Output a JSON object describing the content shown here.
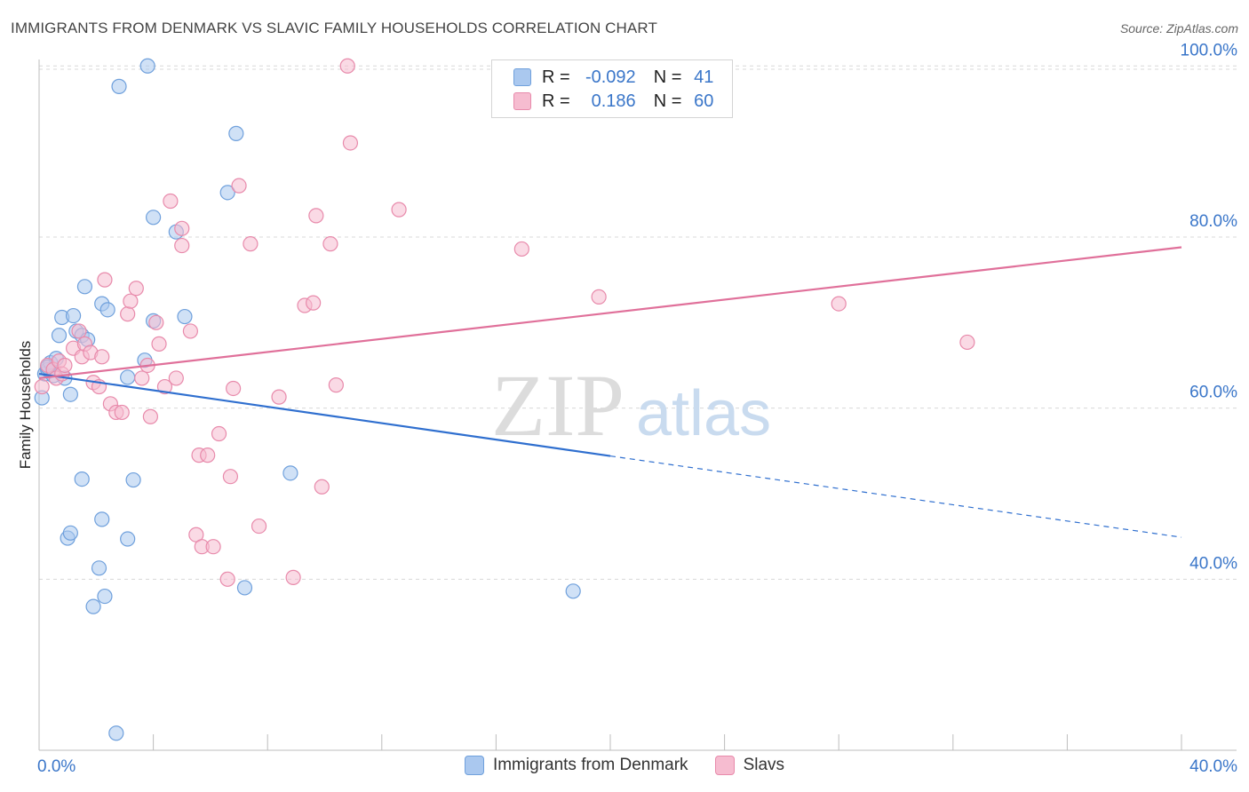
{
  "header": {
    "title": "IMMIGRANTS FROM DENMARK VS SLAVIC FAMILY HOUSEHOLDS CORRELATION CHART",
    "source": "Source: ZipAtlas.com"
  },
  "legend_top": {
    "rows": [
      {
        "r_label": "R =",
        "r_value": "-0.092",
        "n_label": "N =",
        "n_value": "41"
      },
      {
        "r_label": "R =",
        "r_value": "0.186",
        "n_label": "N =",
        "n_value": "60"
      }
    ]
  },
  "legend_bottom": {
    "items": [
      "Immigrants from Denmark",
      "Slavs"
    ]
  },
  "watermark": {
    "zip": "ZIP",
    "atlas": "atlas"
  },
  "colors": {
    "denmark_fill": "#aac8ef",
    "denmark_stroke": "#6fa0dc",
    "denmark_line": "#2f6fcf",
    "slavs_fill": "#f6bcd0",
    "slavs_stroke": "#e88aab",
    "slavs_line": "#e0709a",
    "grid": "#d8d8d8",
    "tick_label": "#3a76c9"
  },
  "chart_data": {
    "type": "scatter",
    "title": "IMMIGRANTS FROM DENMARK VS SLAVIC FAMILY HOUSEHOLDS CORRELATION CHART",
    "ylabel": "Family Households",
    "xlabel": "",
    "xlim": [
      0,
      40
    ],
    "ylim": [
      20,
      102
    ],
    "x_tick_labels": [
      {
        "value": 0,
        "label": "0.0%"
      },
      {
        "value": 40,
        "label": "40.0%"
      }
    ],
    "y_tick_labels": [
      {
        "value": 100,
        "label": "100.0%"
      },
      {
        "value": 80,
        "label": "80.0%"
      },
      {
        "value": 60,
        "label": "60.0%"
      },
      {
        "value": 40,
        "label": "40.0%"
      }
    ],
    "grid": true,
    "legend_position": "top-center",
    "series": [
      {
        "name": "Immigrants from Denmark",
        "points": [
          [
            0.1,
            61.2
          ],
          [
            0.2,
            64.0
          ],
          [
            0.3,
            64.5
          ],
          [
            0.4,
            65.3
          ],
          [
            0.5,
            63.8
          ],
          [
            0.6,
            65.8
          ],
          [
            0.7,
            68.5
          ],
          [
            0.8,
            70.6
          ],
          [
            0.9,
            63.5
          ],
          [
            1.1,
            61.6
          ],
          [
            1.2,
            70.8
          ],
          [
            1.3,
            69.0
          ],
          [
            1.5,
            68.5
          ],
          [
            1.6,
            74.2
          ],
          [
            1.7,
            68.0
          ],
          [
            2.2,
            72.2
          ],
          [
            2.4,
            71.5
          ],
          [
            2.8,
            97.6
          ],
          [
            3.8,
            100.0
          ],
          [
            4.0,
            82.3
          ],
          [
            3.7,
            65.6
          ],
          [
            3.1,
            63.6
          ],
          [
            4.0,
            70.2
          ],
          [
            4.8,
            80.6
          ],
          [
            5.1,
            70.7
          ],
          [
            6.6,
            85.2
          ],
          [
            6.9,
            92.1
          ],
          [
            8.8,
            52.4
          ],
          [
            1.5,
            51.7
          ],
          [
            3.3,
            51.6
          ],
          [
            2.2,
            47.0
          ],
          [
            1.0,
            44.8
          ],
          [
            1.1,
            45.4
          ],
          [
            3.1,
            44.7
          ],
          [
            2.1,
            41.3
          ],
          [
            2.3,
            38.0
          ],
          [
            1.9,
            36.8
          ],
          [
            7.2,
            39.0
          ],
          [
            18.7,
            38.6
          ],
          [
            2.7,
            22.0
          ],
          [
            0.3,
            64.8
          ]
        ]
      },
      {
        "name": "Slavs",
        "points": [
          [
            0.1,
            62.5
          ],
          [
            0.3,
            65.0
          ],
          [
            0.5,
            64.5
          ],
          [
            0.6,
            63.5
          ],
          [
            0.7,
            65.5
          ],
          [
            0.8,
            64.0
          ],
          [
            0.9,
            65.0
          ],
          [
            1.2,
            67.0
          ],
          [
            1.4,
            69.0
          ],
          [
            1.5,
            66.0
          ],
          [
            1.6,
            67.5
          ],
          [
            1.8,
            66.5
          ],
          [
            1.9,
            63.0
          ],
          [
            2.1,
            62.5
          ],
          [
            2.2,
            66.0
          ],
          [
            2.3,
            75.0
          ],
          [
            2.5,
            60.5
          ],
          [
            2.7,
            59.5
          ],
          [
            2.9,
            59.5
          ],
          [
            3.1,
            71.0
          ],
          [
            3.2,
            72.5
          ],
          [
            3.4,
            74.0
          ],
          [
            3.6,
            63.5
          ],
          [
            3.8,
            65.0
          ],
          [
            3.9,
            59.0
          ],
          [
            4.1,
            70.0
          ],
          [
            4.2,
            67.5
          ],
          [
            4.4,
            62.5
          ],
          [
            4.6,
            84.2
          ],
          [
            4.8,
            63.5
          ],
          [
            5.0,
            81.0
          ],
          [
            5.0,
            79.0
          ],
          [
            5.3,
            69.0
          ],
          [
            5.5,
            45.2
          ],
          [
            5.7,
            43.8
          ],
          [
            5.6,
            54.5
          ],
          [
            5.9,
            54.5
          ],
          [
            6.1,
            43.8
          ],
          [
            6.3,
            57.0
          ],
          [
            6.6,
            40.0
          ],
          [
            6.7,
            52.0
          ],
          [
            6.8,
            62.3
          ],
          [
            7.0,
            86.0
          ],
          [
            7.4,
            79.2
          ],
          [
            7.7,
            46.2
          ],
          [
            8.4,
            61.3
          ],
          [
            8.9,
            40.2
          ],
          [
            9.3,
            72.0
          ],
          [
            9.6,
            72.3
          ],
          [
            9.7,
            82.5
          ],
          [
            9.9,
            50.8
          ],
          [
            10.2,
            79.2
          ],
          [
            10.4,
            62.7
          ],
          [
            10.8,
            100.0
          ],
          [
            10.9,
            91.0
          ],
          [
            12.6,
            83.2
          ],
          [
            16.9,
            78.6
          ],
          [
            19.6,
            73.0
          ],
          [
            28.0,
            72.2
          ],
          [
            32.5,
            67.7
          ]
        ]
      }
    ],
    "trend_lines": [
      {
        "name": "Immigrants from Denmark",
        "x_start": 0,
        "y_start": 64.0,
        "x_solid_end": 20,
        "y_solid_end": 54.4,
        "x_end": 40,
        "y_end": 44.9,
        "style": "solid-then-dashed"
      },
      {
        "name": "Slavs",
        "x_start": 0,
        "y_start": 63.5,
        "x_end": 40,
        "y_end": 78.8,
        "style": "solid"
      }
    ]
  }
}
